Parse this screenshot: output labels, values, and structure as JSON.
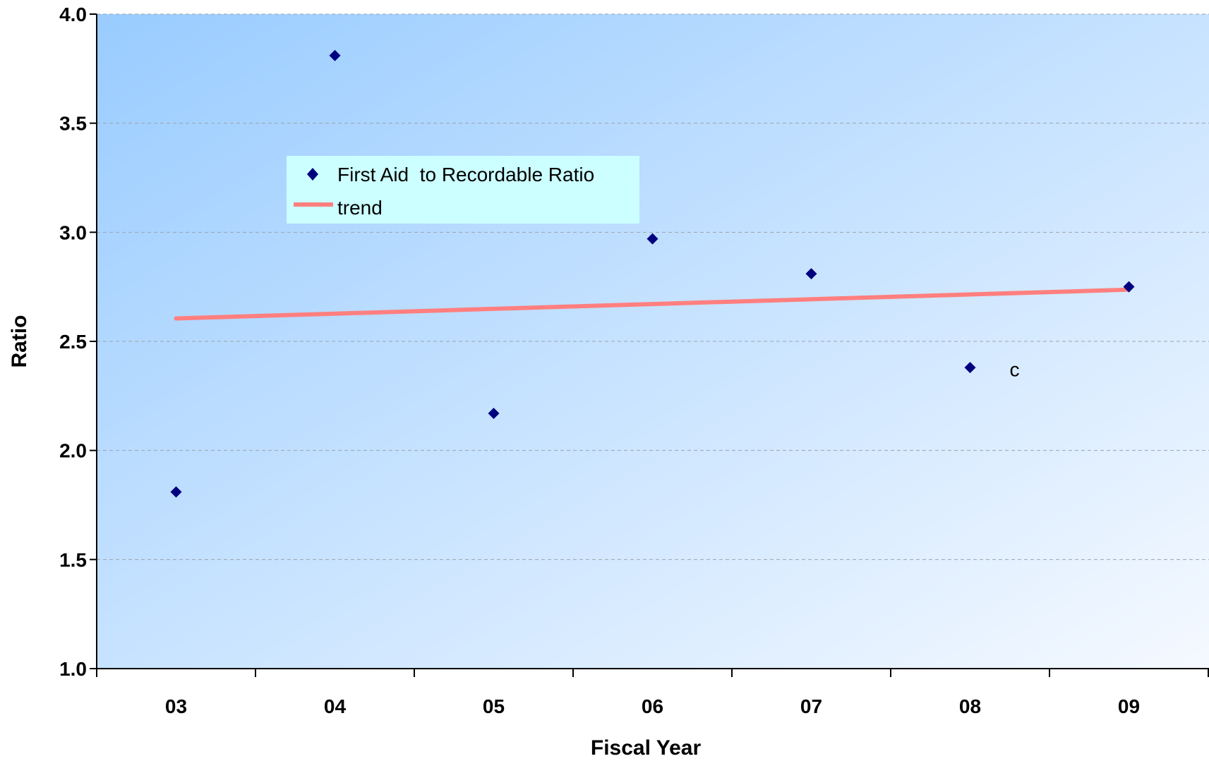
{
  "chart_data": {
    "type": "scatter",
    "title": "",
    "xlabel": "Fiscal Year",
    "ylabel": "Ratio",
    "categories": [
      "03",
      "04",
      "05",
      "06",
      "07",
      "08",
      "09"
    ],
    "ylim": [
      1.0,
      4.0
    ],
    "yticks": [
      "1.0",
      "1.5",
      "2.0",
      "2.5",
      "3.0",
      "3.5",
      "4.0"
    ],
    "grid": true,
    "legend_position": "upper-left-inside",
    "series": [
      {
        "name": "First Aid  to Recordable Ratio",
        "kind": "points",
        "color": "#00007f",
        "values": [
          1.81,
          3.81,
          2.17,
          2.97,
          2.81,
          2.38,
          2.75
        ]
      },
      {
        "name": "trend",
        "kind": "line",
        "color": "#ff7f7f",
        "values": [
          2.605,
          2.627,
          2.649,
          2.671,
          2.693,
          2.715,
          2.737
        ]
      }
    ],
    "annotations": [
      {
        "text": "c",
        "x": 5.78,
        "y": 2.34
      }
    ],
    "colors": {
      "plot_gradient_start": "#99ccff",
      "plot_gradient_end": "#f5f9ff",
      "legend_background": "#ccffff"
    }
  }
}
